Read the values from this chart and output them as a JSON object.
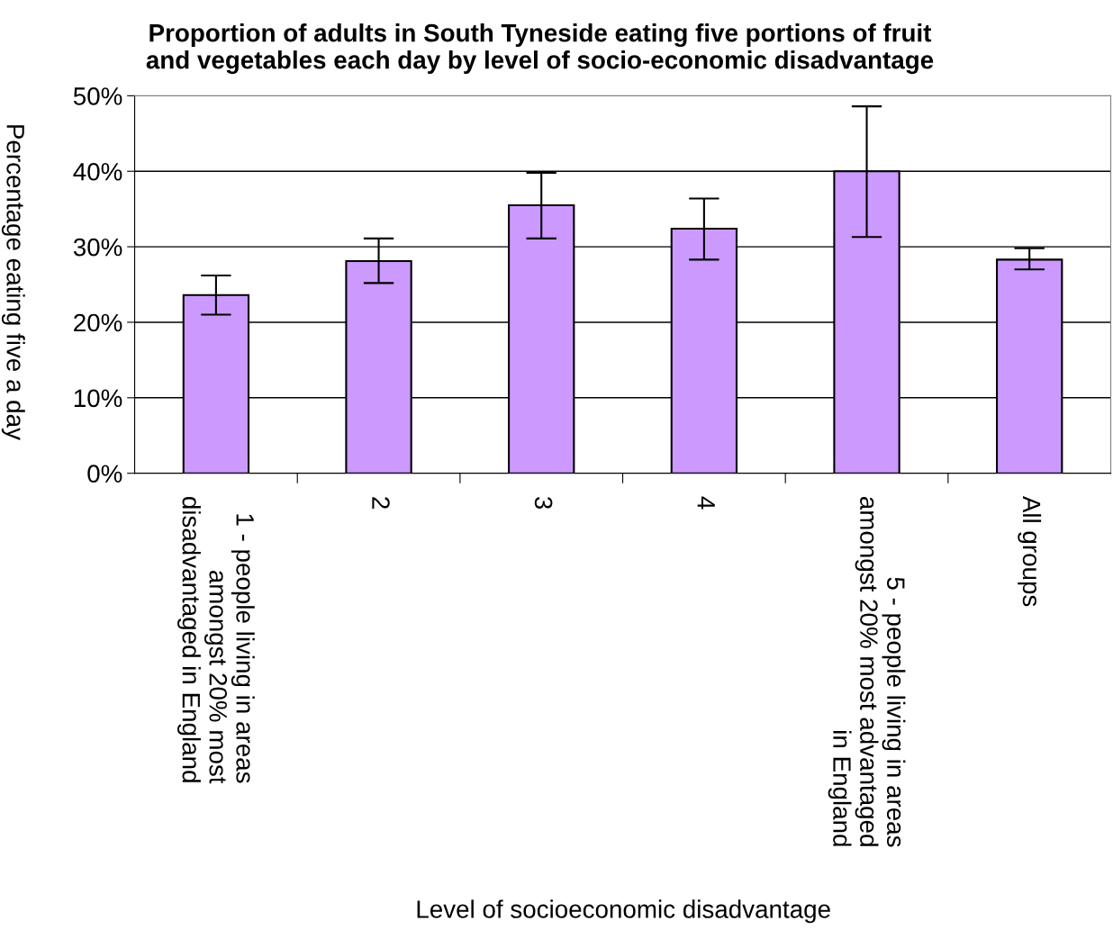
{
  "chart_data": {
    "type": "bar",
    "title": "Proportion of adults in South Tyneside eating five portions of fruit\nand vegetables each day by level of socio-economic disadvantage",
    "xlabel": "Level of socioeconomic disadvantage",
    "ylabel": "Percentage eating five a day",
    "categories": [
      "1 - people living in areas\namongst 20% most\ndisadvantaged in England",
      "2",
      "3",
      "4",
      "5 - people living in areas\namongst 20% most advantaged\nin England",
      "All groups"
    ],
    "values": [
      23.6,
      28.1,
      35.5,
      32.4,
      40.0,
      28.3
    ],
    "errors": [
      [
        21.0,
        26.2
      ],
      [
        25.2,
        31.1
      ],
      [
        31.1,
        39.8
      ],
      [
        28.3,
        36.4
      ],
      [
        31.3,
        48.6
      ],
      [
        27.0,
        29.8
      ]
    ],
    "color": "#cc99ff",
    "ylim": [
      0,
      50
    ],
    "yticks": [
      {
        "value": 0,
        "label": "0%"
      },
      {
        "value": 10,
        "label": "10%"
      },
      {
        "value": 20,
        "label": "20%"
      },
      {
        "value": 30,
        "label": "30%"
      },
      {
        "value": 40,
        "label": "40%"
      },
      {
        "value": 50,
        "label": "50%"
      }
    ],
    "grid": "y"
  }
}
